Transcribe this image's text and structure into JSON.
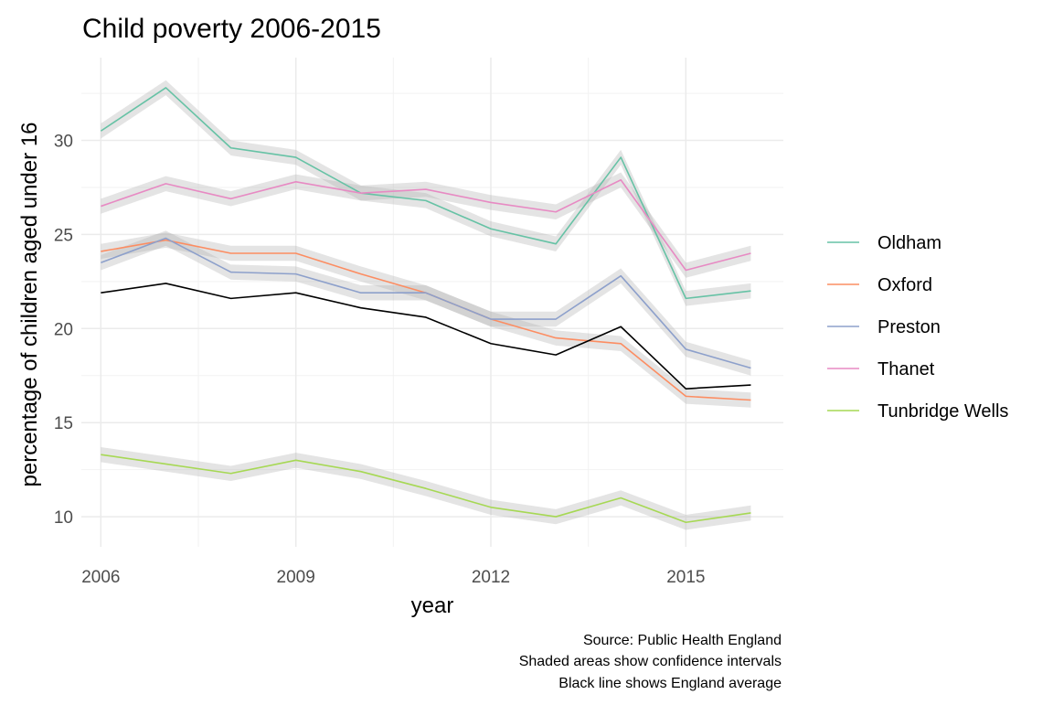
{
  "chart_data": {
    "type": "line",
    "title": "Child poverty 2006-2015",
    "xlabel": "year",
    "ylabel": "percentage of children aged under 16",
    "x": [
      2006,
      2007,
      2008,
      2009,
      2010,
      2011,
      2012,
      2013,
      2014,
      2015,
      2016
    ],
    "xlim": [
      2005.7,
      2016.5
    ],
    "ylim": [
      8.4,
      34.4
    ],
    "xticks": [
      2006,
      2009,
      2012,
      2015
    ],
    "yticks": [
      10,
      15,
      20,
      25,
      30
    ],
    "grid": true,
    "legend_position": "right",
    "series": [
      {
        "name": "Oldham",
        "color": "#66c2a5",
        "values": [
          30.5,
          32.8,
          29.6,
          29.1,
          27.2,
          26.8,
          25.3,
          24.5,
          29.1,
          21.6,
          22.0
        ]
      },
      {
        "name": "Oxford",
        "color": "#fc8d62",
        "values": [
          24.1,
          24.7,
          24.0,
          24.0,
          22.9,
          21.9,
          20.5,
          19.5,
          19.2,
          16.4,
          16.2
        ]
      },
      {
        "name": "Preston",
        "color": "#8da0cb",
        "values": [
          23.5,
          24.8,
          23.0,
          22.9,
          21.9,
          21.9,
          20.5,
          20.5,
          22.8,
          18.9,
          17.9
        ]
      },
      {
        "name": "Thanet",
        "color": "#e78ac3",
        "values": [
          26.5,
          27.7,
          26.9,
          27.8,
          27.2,
          27.4,
          26.7,
          26.2,
          27.9,
          23.1,
          24.0
        ]
      },
      {
        "name": "Tunbridge Wells",
        "color": "#a6d854",
        "values": [
          13.3,
          12.8,
          12.3,
          13.0,
          12.4,
          11.5,
          10.5,
          10.0,
          11.0,
          9.7,
          10.2
        ]
      }
    ],
    "reference_line": {
      "color": "#000000",
      "values": [
        21.9,
        22.4,
        21.6,
        21.9,
        21.1,
        20.6,
        19.2,
        18.6,
        20.1,
        16.8,
        17.0
      ]
    },
    "confidence_band_halfwidth": 0.4,
    "caption": [
      "Source: Public Health England",
      "Shaded areas show confidence intervals",
      "Black line shows England average"
    ]
  }
}
